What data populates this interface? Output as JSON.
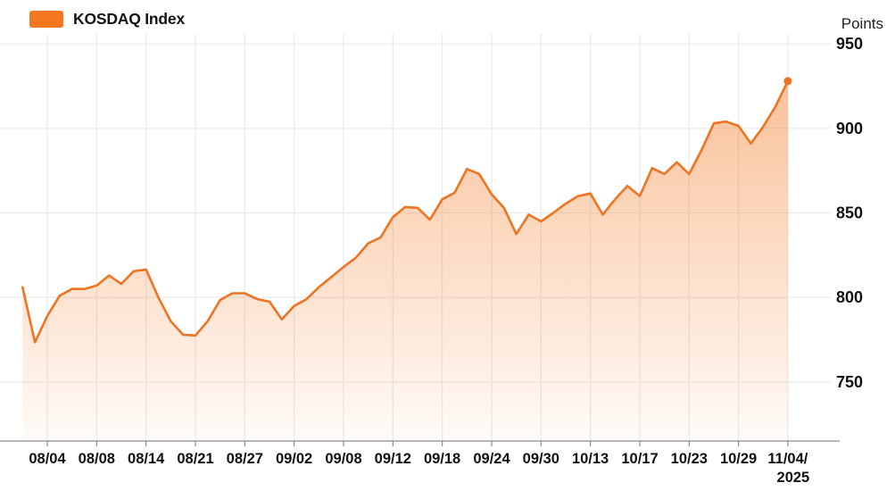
{
  "legend": {
    "label": "KOSDAQ Index"
  },
  "y_axis": {
    "unit": "Points"
  },
  "colors": {
    "accent_orange": "#f3771e",
    "line": "#ec7423",
    "area_fill_base": "#f3771e",
    "grid": "#ebebeb",
    "axis": "#8a8a8a",
    "label_text": "#141414"
  },
  "chart_data": {
    "type": "area",
    "title": "KOSDAQ Index",
    "y_unit": "Points",
    "grid": true,
    "legend_position": "top-left",
    "marker_on_last_point": true,
    "y_ticks": [
      950,
      900,
      850,
      800,
      750
    ],
    "ylim": [
      715,
      956
    ],
    "x_ticks": [
      {
        "i": 2,
        "label": "08/04"
      },
      {
        "i": 6,
        "label": "08/08"
      },
      {
        "i": 10,
        "label": "08/14"
      },
      {
        "i": 14,
        "label": "08/21"
      },
      {
        "i": 18,
        "label": "08/27"
      },
      {
        "i": 22,
        "label": "09/02"
      },
      {
        "i": 26,
        "label": "09/08"
      },
      {
        "i": 30,
        "label": "09/12"
      },
      {
        "i": 34,
        "label": "09/18"
      },
      {
        "i": 38,
        "label": "09/24"
      },
      {
        "i": 42,
        "label": "09/30"
      },
      {
        "i": 46,
        "label": "10/13"
      },
      {
        "i": 50,
        "label": "10/17"
      },
      {
        "i": 54,
        "label": "10/23"
      },
      {
        "i": 58,
        "label": "10/29"
      },
      {
        "i": 62,
        "label": "11/04/",
        "label2": "2025"
      }
    ],
    "values": [
      806,
      773.5,
      789,
      801,
      805,
      805,
      807,
      813,
      808,
      815.5,
      816.5,
      800,
      786,
      778,
      777.5,
      786,
      798.5,
      802.5,
      802.5,
      799,
      797.5,
      787,
      795,
      799,
      806,
      812,
      818,
      823.5,
      832,
      835.5,
      847.5,
      853.5,
      853,
      846,
      858,
      862,
      876,
      873,
      861,
      853,
      837.5,
      849,
      845,
      850,
      855.5,
      860,
      861.5,
      849,
      858,
      866,
      860,
      876.5,
      873,
      880,
      873,
      887,
      903,
      904,
      901.5,
      891,
      901,
      913,
      928
    ],
    "last_value": 928
  }
}
